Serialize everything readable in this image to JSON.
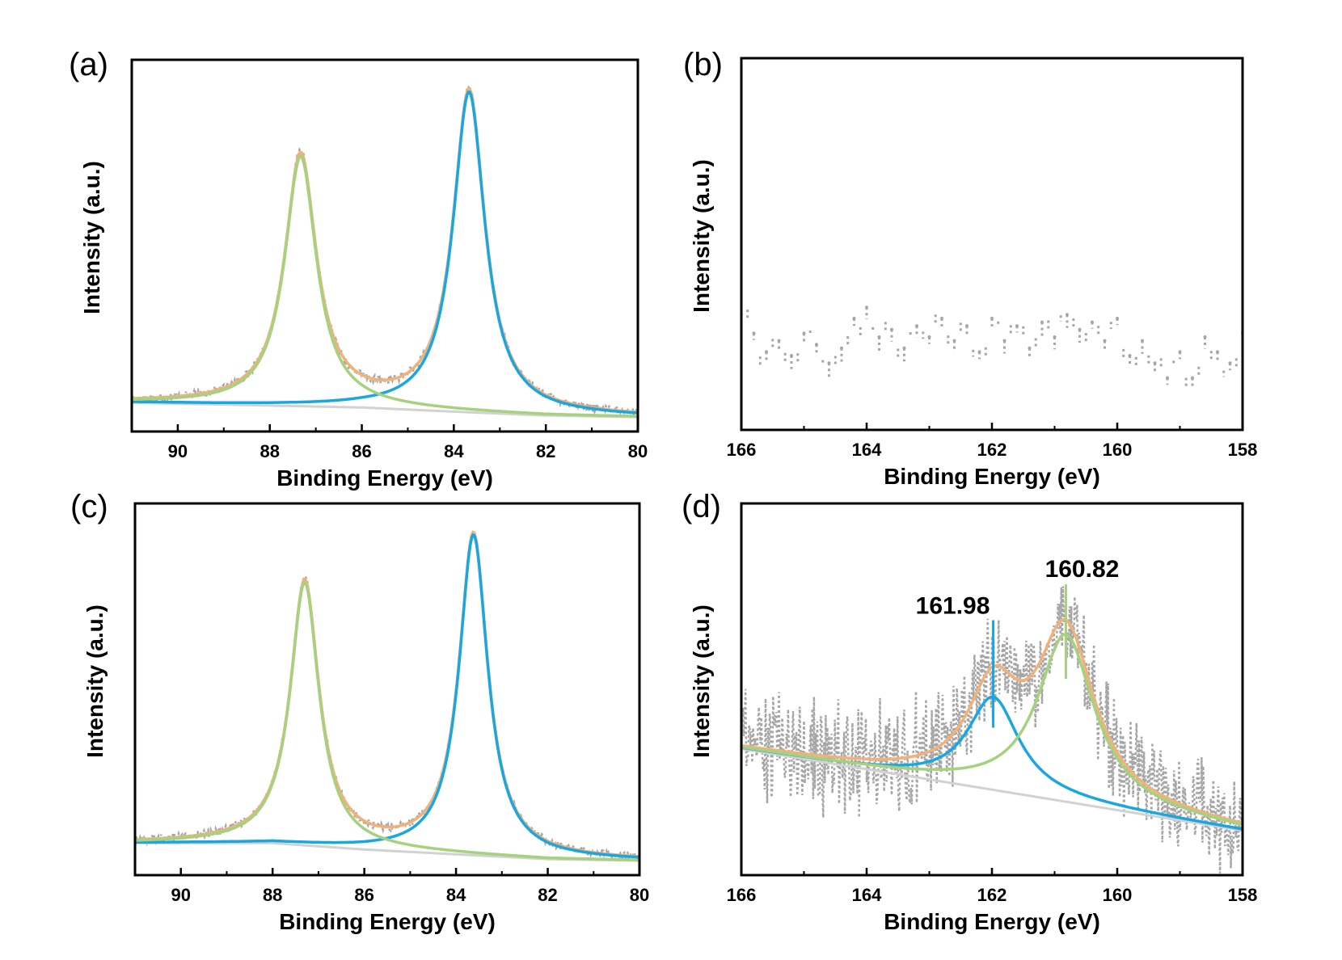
{
  "colors": {
    "data": "#a6a6a6",
    "envelope": "#f0b27a",
    "peak_blue": "#1aa7e0",
    "peak_green": "#a6d17e",
    "background_line": "#d2d2d2",
    "frame": "#000000"
  },
  "chart_data": [
    {
      "id": "a",
      "type": "line",
      "panel_label": "(a)",
      "xlabel": "Binding Energy (eV)",
      "ylabel": "Intensity (a.u.)",
      "xlim": [
        91,
        80
      ],
      "x_reversed": true,
      "ylim": [
        -0.04,
        1.12
      ],
      "xticks": [
        90,
        88,
        86,
        84,
        82,
        80
      ],
      "xtick_labels": [
        "90",
        "88",
        "86",
        "84",
        "82",
        "80"
      ],
      "y_tick_labels": false,
      "grid": false,
      "background": {
        "x": [
          91,
          86,
          84,
          82,
          80
        ],
        "y": [
          0.05,
          0.035,
          0.022,
          0.01,
          0.005
        ]
      },
      "peaks": [
        {
          "name": "blue",
          "center": 83.67,
          "height": 1.0,
          "width": 0.42
        },
        {
          "name": "green",
          "center": 87.33,
          "height": 0.78,
          "width": 0.42
        }
      ],
      "data_noise": 0.012
    },
    {
      "id": "b",
      "type": "scatter",
      "panel_label": "(b)",
      "xlabel": "Binding Energy (eV)",
      "ylabel": "Intensity (a.u.)",
      "xlim": [
        166,
        158
      ],
      "x_reversed": true,
      "ylim": [
        0,
        1
      ],
      "xticks": [
        166,
        164,
        162,
        160,
        158
      ],
      "xtick_labels": [
        "166",
        "164",
        "162",
        "160",
        "158"
      ],
      "y_tick_labels": false,
      "grid": false,
      "series": [
        {
          "name": "data",
          "x": [
            166.0,
            165.8,
            165.6,
            165.4,
            165.2,
            165.0,
            164.8,
            164.6,
            164.4,
            164.2,
            164.0,
            163.8,
            163.6,
            163.4,
            163.2,
            163.0,
            162.8,
            162.6,
            162.4,
            162.2,
            162.0,
            161.8,
            161.6,
            161.4,
            161.2,
            161.0,
            160.8,
            160.6,
            160.4,
            160.2,
            160.0,
            159.8,
            159.6,
            159.4,
            159.2,
            159.0,
            158.8,
            158.6,
            158.4,
            158.2,
            158.0
          ],
          "y": [
            0.31,
            0.26,
            0.21,
            0.24,
            0.2,
            0.26,
            0.23,
            0.18,
            0.22,
            0.3,
            0.33,
            0.25,
            0.27,
            0.22,
            0.28,
            0.25,
            0.3,
            0.24,
            0.28,
            0.21,
            0.3,
            0.24,
            0.28,
            0.22,
            0.29,
            0.25,
            0.31,
            0.27,
            0.29,
            0.24,
            0.3,
            0.2,
            0.24,
            0.18,
            0.14,
            0.21,
            0.14,
            0.25,
            0.21,
            0.18,
            0.26
          ]
        }
      ]
    },
    {
      "id": "c",
      "type": "line",
      "panel_label": "(c)",
      "xlabel": "Binding Energy (eV)",
      "ylabel": "Intensity (a.u.)",
      "xlim": [
        91,
        80
      ],
      "x_reversed": true,
      "ylim": [
        -0.04,
        1.12
      ],
      "xticks": [
        90,
        88,
        86,
        84,
        82,
        80
      ],
      "xtick_labels": [
        "90",
        "88",
        "86",
        "84",
        "82",
        "80"
      ],
      "y_tick_labels": false,
      "grid": false,
      "background": {
        "x": [
          91,
          88,
          86,
          84,
          82,
          80
        ],
        "y": [
          0.06,
          0.06,
          0.04,
          0.025,
          0.01,
          0.005
        ]
      },
      "peaks": [
        {
          "name": "blue",
          "center": 83.62,
          "height": 1.0,
          "width": 0.38
        },
        {
          "name": "green",
          "center": 87.3,
          "height": 0.82,
          "width": 0.38
        }
      ],
      "data_noise": 0.012
    },
    {
      "id": "d",
      "type": "line",
      "panel_label": "(d)",
      "xlabel": "Binding Energy (eV)",
      "ylabel": "Intensity (a.u.)",
      "xlim": [
        166,
        158
      ],
      "x_reversed": true,
      "ylim": [
        0,
        1
      ],
      "xticks": [
        166,
        164,
        162,
        160,
        158
      ],
      "xtick_labels": [
        "166",
        "164",
        "162",
        "160",
        "158"
      ],
      "y_tick_labels": false,
      "grid": false,
      "background": {
        "x": [
          166,
          158
        ],
        "y": [
          0.34,
          0.12
        ]
      },
      "peaks": [
        {
          "name": "blue",
          "center": 161.98,
          "height": 0.25,
          "width": 0.5
        },
        {
          "name": "green",
          "center": 160.82,
          "height": 0.45,
          "width": 0.55
        }
      ],
      "data_noise": 0.08,
      "annotations": [
        {
          "text": "161.98",
          "x": 161.98,
          "color": "peak_blue"
        },
        {
          "text": "160.82",
          "x": 160.82,
          "color": "peak_green"
        }
      ]
    }
  ]
}
